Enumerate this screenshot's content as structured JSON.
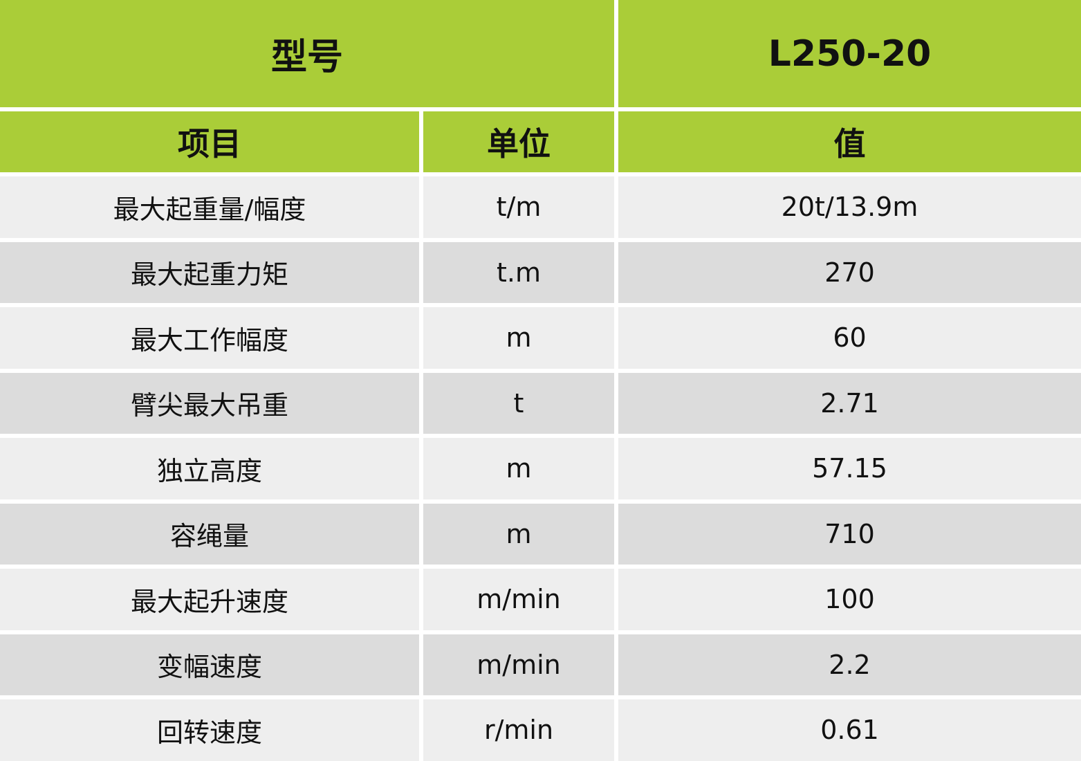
{
  "header": {
    "model_label": "型号",
    "model_value": "L250-20"
  },
  "columns": {
    "item": "项目",
    "unit": "单位",
    "value": "值"
  },
  "colors": {
    "header_green": "#aacd38",
    "row_light": "#eeeeee",
    "row_dark": "#dcdcdc"
  },
  "rows": [
    {
      "item": "最大起重量/幅度",
      "unit": "t/m",
      "value": "20t/13.9m"
    },
    {
      "item": "最大起重力矩",
      "unit": "t.m",
      "value": "270"
    },
    {
      "item": "最大工作幅度",
      "unit": "m",
      "value": "60"
    },
    {
      "item": "臂尖最大吊重",
      "unit": "t",
      "value": "2.71"
    },
    {
      "item": "独立高度",
      "unit": "m",
      "value": "57.15"
    },
    {
      "item": "容绳量",
      "unit": "m",
      "value": "710"
    },
    {
      "item": "最大起升速度",
      "unit": "m/min",
      "value": "100"
    },
    {
      "item": "变幅速度",
      "unit": "m/min",
      "value": "2.2"
    },
    {
      "item": "回转速度",
      "unit": "r/min",
      "value": "0.61"
    }
  ]
}
